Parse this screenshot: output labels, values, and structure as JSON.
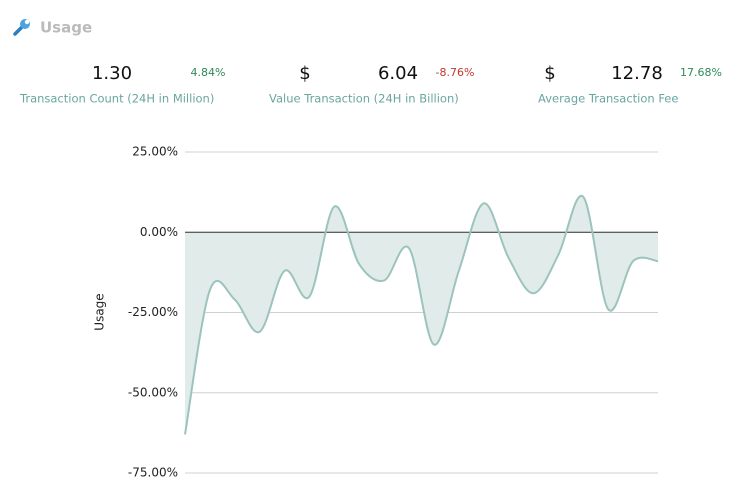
{
  "header": {
    "title": "Usage"
  },
  "stats": [
    {
      "value": "1.30",
      "change": "4.84%",
      "label": "Transaction Count (24H in Million)"
    },
    {
      "currency": "$",
      "value": "6.04",
      "change": "-8.76%",
      "label": "Value Transaction (24H in Billion)"
    },
    {
      "currency": "$",
      "value": "12.78",
      "change": "17.68%",
      "label": "Average Transaction Fee"
    }
  ],
  "chart_data": {
    "type": "area",
    "ylabel": "Usage",
    "categories": [
      null,
      null,
      null,
      null,
      null,
      null,
      null,
      null,
      null,
      null,
      null,
      null,
      null,
      null,
      null,
      null,
      null,
      null,
      null,
      null
    ],
    "values": [
      -63,
      -18,
      -21,
      -31,
      -12,
      -20,
      8,
      -10,
      -15,
      -5,
      -35,
      -12,
      9,
      -8,
      -19,
      -7,
      11,
      -24,
      -9,
      -9
    ],
    "color": "#9cc3bc",
    "fill": "#e1ecea",
    "ylim": [
      -75,
      25
    ],
    "yticks": [
      {
        "value": 25,
        "label": "25.00%"
      },
      {
        "value": 0,
        "label": "0.00%"
      },
      {
        "value": -25,
        "label": "-25.00%"
      },
      {
        "value": -50,
        "label": "-50.00%"
      },
      {
        "value": -75,
        "label": "-75.00%"
      }
    ],
    "grid": true
  }
}
